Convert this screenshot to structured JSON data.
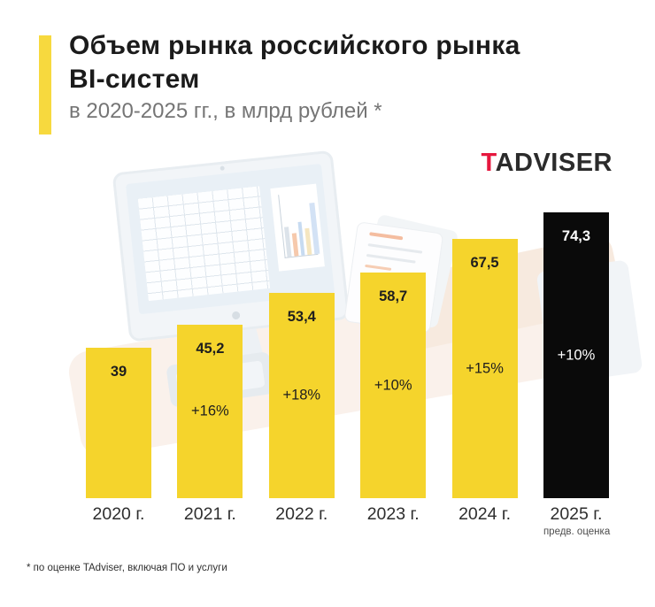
{
  "header": {
    "title_line1": "Объем рынка российского рынка",
    "title_line2": "BI-систем",
    "subtitle": "в 2020-2025 гг., в млрд рублей *",
    "accent_color": "#F7D93E"
  },
  "logo": {
    "prefix": "T",
    "rest": "ADVISER",
    "prefix_color": "#E6173E",
    "text_color": "#2B2B2B"
  },
  "chart_data": {
    "type": "bar",
    "title": "Объем рынка российского рынка BI-систем",
    "subtitle": "в 2020-2025 гг., в млрд рублей *",
    "unit": "млрд рублей",
    "categories": [
      "2020 г.",
      "2021 г.",
      "2022 г.",
      "2023 г.",
      "2024 г.",
      "2025 г."
    ],
    "values": [
      39,
      45.2,
      53.4,
      58.7,
      67.5,
      74.3
    ],
    "value_labels": [
      "39",
      "45,2",
      "53,4",
      "58,7",
      "67,5",
      "74,3"
    ],
    "growth_labels": [
      "",
      "+16%",
      "+18%",
      "+10%",
      "+15%",
      "+10%"
    ],
    "bar_colors": [
      "#F5D42C",
      "#F5D42C",
      "#F5D42C",
      "#F5D42C",
      "#F5D42C",
      "#0A0A0A"
    ],
    "text_colors": [
      "#1E1E1E",
      "#1E1E1E",
      "#1E1E1E",
      "#1E1E1E",
      "#1E1E1E",
      "#FFFFFF"
    ],
    "category_notes": [
      "",
      "",
      "",
      "",
      "",
      "предв. оценка"
    ],
    "ylim": [
      0,
      80
    ],
    "grid": false,
    "legend": false
  },
  "footnote": "* по оценке TAdviser, включая ПО и услуги"
}
